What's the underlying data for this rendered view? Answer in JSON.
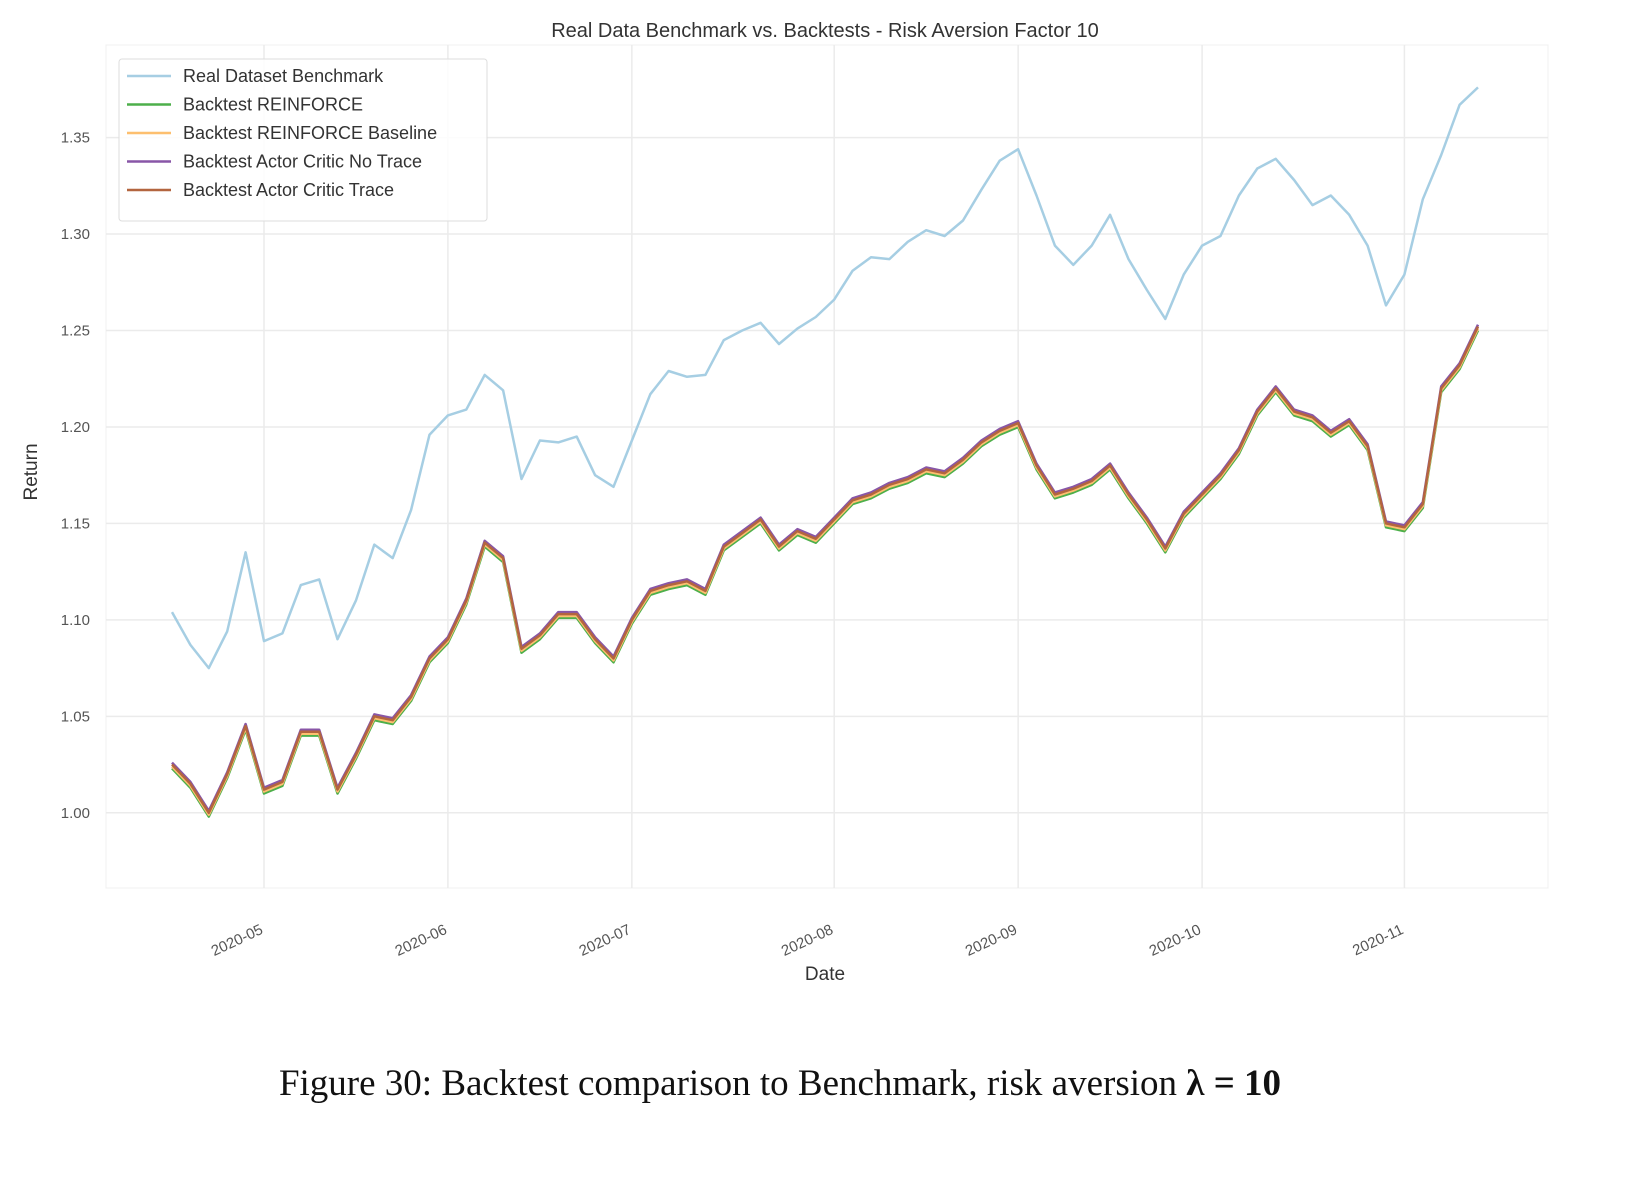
{
  "chart_data": {
    "type": "line",
    "title": "Real Data Benchmark vs. Backtests - Risk Aversion Factor 10",
    "x_label": "Date",
    "y_label": "Return",
    "categories": [
      null,
      null,
      null,
      null,
      null,
      "2020-05",
      null,
      null,
      null,
      null,
      null,
      null,
      null,
      null,
      null,
      "2020-06",
      null,
      null,
      null,
      null,
      null,
      null,
      null,
      null,
      null,
      "2020-07",
      null,
      null,
      null,
      null,
      null,
      null,
      null,
      null,
      null,
      null,
      "2020-08",
      null,
      null,
      null,
      null,
      null,
      null,
      null,
      null,
      null,
      "2020-09",
      null,
      null,
      null,
      null,
      null,
      null,
      null,
      null,
      null,
      "2020-10",
      null,
      null,
      null,
      null,
      null,
      null,
      null,
      null,
      null,
      null,
      "2020-11",
      null,
      null,
      null,
      null
    ],
    "series": [
      {
        "name": "Real Dataset Benchmark",
        "color": "#a6cee3",
        "values": [
          1.104,
          1.087,
          1.075,
          1.094,
          1.135,
          1.089,
          1.093,
          1.118,
          1.121,
          1.09,
          1.11,
          1.139,
          1.132,
          1.157,
          1.196,
          1.206,
          1.209,
          1.227,
          1.219,
          1.173,
          1.193,
          1.192,
          1.195,
          1.175,
          1.169,
          1.193,
          1.217,
          1.229,
          1.226,
          1.227,
          1.245,
          1.25,
          1.254,
          1.243,
          1.251,
          1.257,
          1.266,
          1.281,
          1.288,
          1.287,
          1.296,
          1.302,
          1.299,
          1.307,
          1.323,
          1.338,
          1.344,
          1.32,
          1.294,
          1.284,
          1.294,
          1.31,
          1.287,
          1.271,
          1.256,
          1.279,
          1.294,
          1.299,
          1.32,
          1.334,
          1.339,
          1.328,
          1.315,
          1.32,
          1.31,
          1.294,
          1.263,
          1.279,
          1.318,
          1.341,
          1.367,
          1.376
        ]
      },
      {
        "name": "Backtest REINFORCE",
        "color": "#4daf4a",
        "values": [
          1.023,
          1.013,
          0.998,
          1.018,
          1.043,
          1.01,
          1.014,
          1.04,
          1.04,
          1.01,
          1.028,
          1.048,
          1.046,
          1.058,
          1.078,
          1.088,
          1.108,
          1.138,
          1.13,
          1.083,
          1.09,
          1.101,
          1.101,
          1.088,
          1.078,
          1.098,
          1.113,
          1.116,
          1.118,
          1.113,
          1.136,
          1.143,
          1.15,
          1.136,
          1.144,
          1.14,
          1.15,
          1.16,
          1.163,
          1.168,
          1.171,
          1.176,
          1.174,
          1.181,
          1.19,
          1.196,
          1.2,
          1.178,
          1.163,
          1.166,
          1.17,
          1.178,
          1.163,
          1.15,
          1.135,
          1.153,
          1.163,
          1.173,
          1.186,
          1.206,
          1.218,
          1.206,
          1.203,
          1.195,
          1.201,
          1.188,
          1.148,
          1.146,
          1.158,
          1.218,
          1.23,
          1.25
        ]
      },
      {
        "name": "Backtest REINFORCE Baseline",
        "color": "#fdbf6f",
        "values": [
          1.024,
          1.014,
          0.999,
          1.019,
          1.044,
          1.011,
          1.015,
          1.041,
          1.041,
          1.011,
          1.029,
          1.049,
          1.047,
          1.059,
          1.079,
          1.089,
          1.109,
          1.139,
          1.131,
          1.084,
          1.091,
          1.102,
          1.102,
          1.089,
          1.079,
          1.099,
          1.114,
          1.117,
          1.119,
          1.114,
          1.137,
          1.144,
          1.151,
          1.137,
          1.145,
          1.141,
          1.151,
          1.161,
          1.164,
          1.169,
          1.172,
          1.177,
          1.175,
          1.182,
          1.191,
          1.197,
          1.201,
          1.179,
          1.164,
          1.167,
          1.171,
          1.179,
          1.164,
          1.151,
          1.136,
          1.154,
          1.164,
          1.174,
          1.187,
          1.207,
          1.219,
          1.207,
          1.204,
          1.196,
          1.202,
          1.189,
          1.149,
          1.147,
          1.159,
          1.219,
          1.231,
          1.251
        ]
      },
      {
        "name": "Backtest Actor Critic No Trace",
        "color": "#8856a7",
        "values": [
          1.026,
          1.016,
          1.001,
          1.021,
          1.046,
          1.013,
          1.017,
          1.043,
          1.043,
          1.013,
          1.031,
          1.051,
          1.049,
          1.061,
          1.081,
          1.091,
          1.111,
          1.141,
          1.133,
          1.086,
          1.093,
          1.104,
          1.104,
          1.091,
          1.081,
          1.101,
          1.116,
          1.119,
          1.121,
          1.116,
          1.139,
          1.146,
          1.153,
          1.139,
          1.147,
          1.143,
          1.153,
          1.163,
          1.166,
          1.171,
          1.174,
          1.179,
          1.177,
          1.184,
          1.193,
          1.199,
          1.203,
          1.181,
          1.166,
          1.169,
          1.173,
          1.181,
          1.166,
          1.153,
          1.138,
          1.156,
          1.166,
          1.176,
          1.189,
          1.209,
          1.221,
          1.209,
          1.206,
          1.198,
          1.204,
          1.191,
          1.151,
          1.149,
          1.161,
          1.221,
          1.233,
          1.253
        ]
      },
      {
        "name": "Backtest Actor Critic Trace",
        "color": "#b3653f",
        "values": [
          1.025,
          1.015,
          1.0,
          1.02,
          1.045,
          1.012,
          1.016,
          1.042,
          1.042,
          1.012,
          1.03,
          1.05,
          1.048,
          1.06,
          1.08,
          1.09,
          1.11,
          1.14,
          1.132,
          1.085,
          1.092,
          1.103,
          1.103,
          1.09,
          1.08,
          1.1,
          1.115,
          1.118,
          1.12,
          1.115,
          1.138,
          1.145,
          1.152,
          1.138,
          1.146,
          1.142,
          1.152,
          1.162,
          1.165,
          1.17,
          1.173,
          1.178,
          1.176,
          1.183,
          1.192,
          1.198,
          1.202,
          1.18,
          1.165,
          1.168,
          1.172,
          1.18,
          1.165,
          1.152,
          1.137,
          1.155,
          1.165,
          1.175,
          1.188,
          1.208,
          1.22,
          1.208,
          1.205,
          1.197,
          1.203,
          1.19,
          1.15,
          1.148,
          1.16,
          1.22,
          1.232,
          1.252
        ]
      }
    ],
    "ylim": [
      0.961,
      1.398
    ],
    "yticks": [
      {
        "value": 1,
        "label": "1.00"
      },
      1.05,
      {
        "value": 1.1,
        "label": "1.10"
      },
      1.15,
      {
        "value": 1.2,
        "label": "1.20"
      },
      1.25,
      {
        "value": 1.3,
        "label": "1.30"
      },
      1.35
    ],
    "grid": true,
    "legend": "upper left",
    "caption": {
      "label": "Figure 30:",
      "text": "Backtest comparison to Benchmark, risk aversion",
      "math": "λ = 10"
    }
  }
}
